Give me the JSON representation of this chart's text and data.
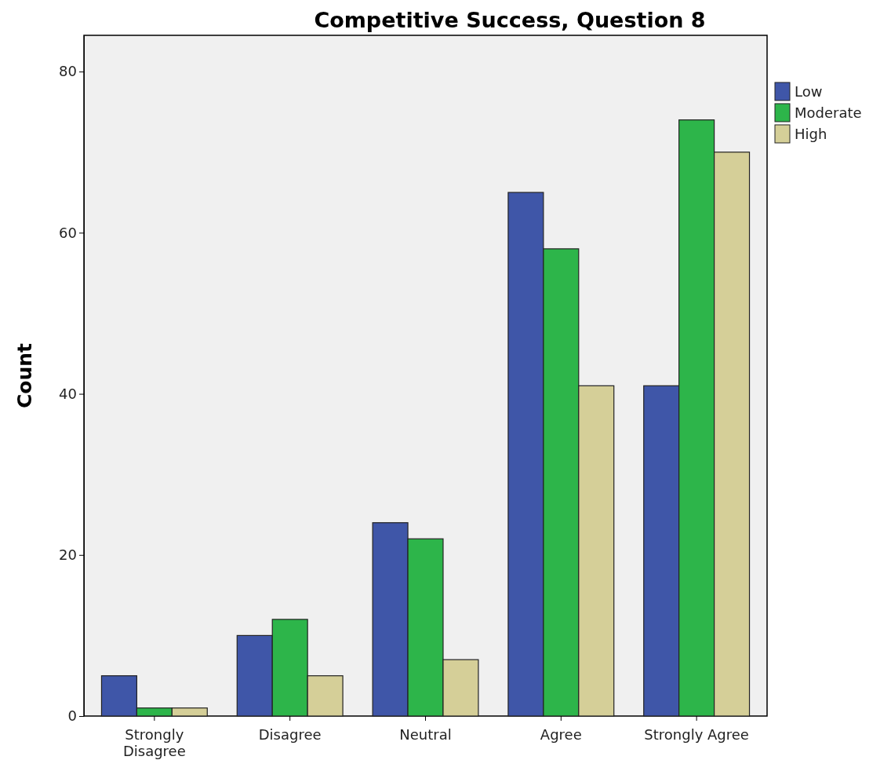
{
  "chart_data": {
    "type": "bar",
    "title": "Competitive Success, Question 8",
    "ylabel": "Count",
    "categories": [
      "Strongly Disagree",
      "Disagree",
      "Neutral",
      "Agree",
      "Strongly Agree"
    ],
    "series": [
      {
        "name": "Low",
        "color": "#3f56a8",
        "values": [
          5,
          10,
          24,
          65,
          41
        ]
      },
      {
        "name": "Moderate",
        "color": "#2db54a",
        "values": [
          1,
          12,
          22,
          58,
          74
        ]
      },
      {
        "name": "High",
        "color": "#d5cf98",
        "values": [
          1,
          5,
          7,
          41,
          70
        ]
      }
    ],
    "ylim": [
      0,
      84.5
    ],
    "yticks": [
      0,
      20,
      40,
      60,
      80
    ],
    "grid": false,
    "legend": "top right"
  }
}
